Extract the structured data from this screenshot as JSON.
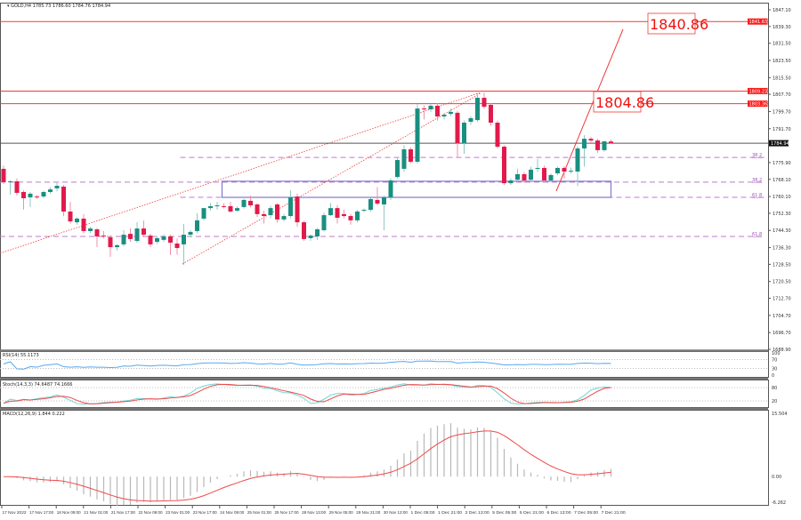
{
  "header": {
    "symbol": "GOLD,H4",
    "ohlc": "1785.73 1786.60 1784.76 1784.94"
  },
  "colors": {
    "bull": "#1a8f80",
    "bear": "#e21a4b",
    "level": "#f03c3c",
    "fib": "#c07ad0",
    "zone": "#8078d0",
    "rsi": "#58a8f0",
    "stoch_main": "#70d8d8",
    "stoch_signal": "#f04848",
    "macd_hist": "#b8b8b8",
    "macd_signal": "#f04848"
  },
  "chart_data": {
    "type": "candlestick",
    "title": "GOLD,H4",
    "ylim": [
      1688.9,
      1847.1
    ],
    "price_ticks": [
      "1847.10",
      "1839.30",
      "1831.50",
      "1823.50",
      "1815.50",
      "1807.70",
      "1799.70",
      "1791.70",
      "1775.90",
      "1768.10",
      "1760.10",
      "1752.30",
      "1744.30",
      "1736.30",
      "1728.50",
      "1720.50",
      "1712.70",
      "1704.70",
      "1696.70",
      "1688.90"
    ],
    "price_tick_values": [
      1847.1,
      1839.3,
      1831.5,
      1823.5,
      1815.5,
      1807.7,
      1799.7,
      1791.7,
      1775.9,
      1768.1,
      1760.1,
      1752.3,
      1744.3,
      1736.3,
      1728.5,
      1720.5,
      1712.7,
      1704.7,
      1696.7,
      1688.9
    ],
    "time_labels": [
      "17 Nov 2022",
      "17 Nov 17:00",
      "18 Nov 09:00",
      "21 Nov 01:00",
      "21 Nov 17:00",
      "22 Nov 09:00",
      "23 Nov 01:00",
      "23 Nov 17:00",
      "24 Nov 09:00",
      "25 Nov 01:00",
      "25 Nov 17:00",
      "28 Nov 13:00",
      "29 Nov 05:00",
      "29 Nov 21:00",
      "30 Nov 13:00",
      "1 Dec 05:00",
      "1 Dec 21:00",
      "2 Dec 13:00",
      "5 Dec 05:00",
      "5 Dec 21:00",
      "6 Dec 13:00",
      "7 Dec 05:00",
      "7 Dec 21:00"
    ],
    "candles_ohlc": [
      [
        1773.0,
        1774.5,
        1766.0,
        1766.8
      ],
      [
        1766.8,
        1767.6,
        1761.0,
        1767.2
      ],
      [
        1767.2,
        1768.5,
        1760.5,
        1761.8
      ],
      [
        1762.2,
        1763.0,
        1754.0,
        1759.3
      ],
      [
        1759.7,
        1762.2,
        1755.2,
        1761.4
      ],
      [
        1760.1,
        1760.8,
        1759.0,
        1759.7
      ],
      [
        1760.1,
        1762.8,
        1759.3,
        1762.2
      ],
      [
        1762.2,
        1764.5,
        1761.4,
        1763.4
      ],
      [
        1763.9,
        1766.8,
        1762.5,
        1765.1
      ],
      [
        1764.7,
        1765.5,
        1750.9,
        1753.1
      ],
      [
        1753.1,
        1757.6,
        1747.5,
        1748.5
      ],
      [
        1748.1,
        1750.5,
        1747.0,
        1749.8
      ],
      [
        1749.8,
        1751.9,
        1743.0,
        1744.0
      ],
      [
        1744.0,
        1746.0,
        1743.0,
        1745.2
      ],
      [
        1744.8,
        1745.5,
        1736.5,
        1741.5
      ],
      [
        1741.9,
        1744.0,
        1740.5,
        1741.5
      ],
      [
        1741.1,
        1742.0,
        1732.0,
        1736.5
      ],
      [
        1736.5,
        1738.0,
        1735.0,
        1737.4
      ],
      [
        1737.8,
        1744.4,
        1736.8,
        1742.3
      ],
      [
        1742.7,
        1745.2,
        1739.0,
        1740.3
      ],
      [
        1739.4,
        1748.1,
        1738.5,
        1745.2
      ],
      [
        1745.2,
        1748.9,
        1741.5,
        1742.3
      ],
      [
        1741.9,
        1742.8,
        1736.5,
        1737.8
      ],
      [
        1739.0,
        1741.5,
        1738.0,
        1740.7
      ],
      [
        1739.9,
        1742.5,
        1739.0,
        1741.5
      ],
      [
        1741.5,
        1742.3,
        1732.8,
        1738.6
      ],
      [
        1738.2,
        1740.5,
        1733.0,
        1736.1
      ],
      [
        1737.8,
        1747.3,
        1728.3,
        1742.3
      ],
      [
        1742.3,
        1744.4,
        1741.0,
        1743.6
      ],
      [
        1744.0,
        1752.3,
        1743.0,
        1749.0
      ],
      [
        1749.8,
        1754.7,
        1749.0,
        1754.7
      ],
      [
        1754.7,
        1757.0,
        1753.5,
        1755.6
      ],
      [
        1755.6,
        1757.6,
        1754.0,
        1756.0
      ],
      [
        1755.6,
        1757.0,
        1754.5,
        1755.2
      ],
      [
        1755.6,
        1757.6,
        1752.5,
        1753.1
      ],
      [
        1753.5,
        1755.5,
        1753.0,
        1754.7
      ],
      [
        1755.2,
        1759.0,
        1754.5,
        1758.5
      ],
      [
        1758.1,
        1760.5,
        1755.0,
        1756.0
      ],
      [
        1756.4,
        1757.0,
        1750.5,
        1751.9
      ],
      [
        1751.9,
        1753.5,
        1747.5,
        1751.0
      ],
      [
        1751.4,
        1755.8,
        1750.0,
        1754.7
      ],
      [
        1756.4,
        1757.0,
        1748.0,
        1749.4
      ],
      [
        1749.4,
        1752.0,
        1748.5,
        1751.0
      ],
      [
        1751.0,
        1763.0,
        1750.0,
        1759.7
      ],
      [
        1760.1,
        1761.5,
        1746.0,
        1748.1
      ],
      [
        1748.1,
        1748.8,
        1739.5,
        1740.3
      ],
      [
        1740.7,
        1742.5,
        1739.5,
        1741.9
      ],
      [
        1741.5,
        1745.5,
        1739.8,
        1744.8
      ],
      [
        1744.4,
        1752.5,
        1743.8,
        1751.4
      ],
      [
        1751.4,
        1757.0,
        1751.0,
        1754.7
      ],
      [
        1754.7,
        1756.0,
        1747.5,
        1750.2
      ],
      [
        1751.9,
        1754.0,
        1750.0,
        1751.0
      ],
      [
        1751.0,
        1752.0,
        1747.0,
        1749.0
      ],
      [
        1749.0,
        1753.8,
        1748.0,
        1753.1
      ],
      [
        1753.5,
        1754.5,
        1752.8,
        1753.9
      ],
      [
        1753.9,
        1759.5,
        1753.0,
        1758.9
      ],
      [
        1758.5,
        1764.5,
        1756.0,
        1756.8
      ],
      [
        1756.4,
        1760.5,
        1744.4,
        1759.7
      ],
      [
        1759.7,
        1768.5,
        1758.5,
        1767.6
      ],
      [
        1769.2,
        1778.0,
        1768.5,
        1777.1
      ],
      [
        1773.0,
        1784.0,
        1771.5,
        1782.1
      ],
      [
        1782.1,
        1783.0,
        1775.5,
        1776.3
      ],
      [
        1776.3,
        1803.2,
        1775.5,
        1801.1
      ],
      [
        1801.1,
        1802.5,
        1796.0,
        1800.7
      ],
      [
        1800.7,
        1803.0,
        1799.5,
        1802.4
      ],
      [
        1802.4,
        1803.5,
        1795.5,
        1797.4
      ],
      [
        1797.4,
        1799.0,
        1796.0,
        1798.2
      ],
      [
        1798.6,
        1801.0,
        1797.5,
        1799.5
      ],
      [
        1799.1,
        1800.0,
        1778.4,
        1785.0
      ],
      [
        1785.0,
        1795.5,
        1780.0,
        1794.5
      ],
      [
        1794.9,
        1797.5,
        1793.5,
        1796.6
      ],
      [
        1795.7,
        1808.2,
        1794.8,
        1806.1
      ],
      [
        1806.1,
        1808.5,
        1801.0,
        1801.9
      ],
      [
        1802.8,
        1803.5,
        1793.0,
        1794.5
      ],
      [
        1794.5,
        1795.5,
        1782.5,
        1783.3
      ],
      [
        1783.3,
        1784.0,
        1765.5,
        1766.3
      ],
      [
        1766.3,
        1768.5,
        1765.5,
        1767.6
      ],
      [
        1767.9,
        1773.0,
        1767.0,
        1770.5
      ],
      [
        1770.5,
        1771.5,
        1766.5,
        1767.6
      ],
      [
        1767.9,
        1774.0,
        1767.0,
        1772.6
      ],
      [
        1773.0,
        1777.5,
        1771.5,
        1773.4
      ],
      [
        1773.4,
        1774.5,
        1766.8,
        1767.6
      ],
      [
        1767.6,
        1770.8,
        1767.0,
        1770.1
      ],
      [
        1770.9,
        1774.0,
        1770.0,
        1773.4
      ],
      [
        1773.4,
        1774.2,
        1768.5,
        1771.7
      ],
      [
        1771.7,
        1773.5,
        1770.8,
        1772.1
      ],
      [
        1771.7,
        1783.5,
        1765.0,
        1782.5
      ],
      [
        1782.5,
        1788.7,
        1774.0,
        1787.0
      ],
      [
        1787.0,
        1788.0,
        1785.0,
        1786.2
      ],
      [
        1786.2,
        1787.0,
        1780.5,
        1781.7
      ],
      [
        1781.7,
        1786.0,
        1781.0,
        1785.8
      ],
      [
        1785.73,
        1786.6,
        1784.76,
        1784.94
      ]
    ],
    "current_price": {
      "value": 1784.94,
      "label": "1784.94"
    },
    "levels": [
      {
        "value": 1841.63,
        "label": "1841.63"
      },
      {
        "value": 1809.23,
        "label": "1809.23"
      },
      {
        "value": 1803.36,
        "label": "1803.36"
      }
    ],
    "fib_levels": [
      {
        "value": 1778.3,
        "label": "38.2",
        "from_candle": 27
      },
      {
        "value": 1766.8,
        "label": "38.2",
        "from_candle": 0
      },
      {
        "value": 1759.7,
        "label": "61.8",
        "from_candle": 27
      },
      {
        "value": 1741.5,
        "label": "61.8",
        "from_candle": 0
      }
    ],
    "zone": {
      "from_candle": 33,
      "to_candle": 91,
      "top": 1767.2,
      "bottom": 1759.7
    },
    "targets": [
      {
        "label": "1804.86",
        "value": 1804.86
      },
      {
        "label": "1840.86",
        "value": 1840.86
      }
    ],
    "indicators": {
      "rsi": {
        "title": "RSI(14) 55.1173",
        "ticks": [
          "100",
          "70",
          "30",
          "0"
        ]
      },
      "stoch": {
        "title": "Stoch(14,3,3) 74.6487 74.1666",
        "ticks": [
          "80",
          "20"
        ]
      },
      "macd": {
        "title": "MACD(12,26,9) 1.844 0.222",
        "ticks": [
          "15.504",
          "0.00",
          "-6.262"
        ],
        "range": [
          -6.262,
          15.504
        ]
      }
    }
  }
}
